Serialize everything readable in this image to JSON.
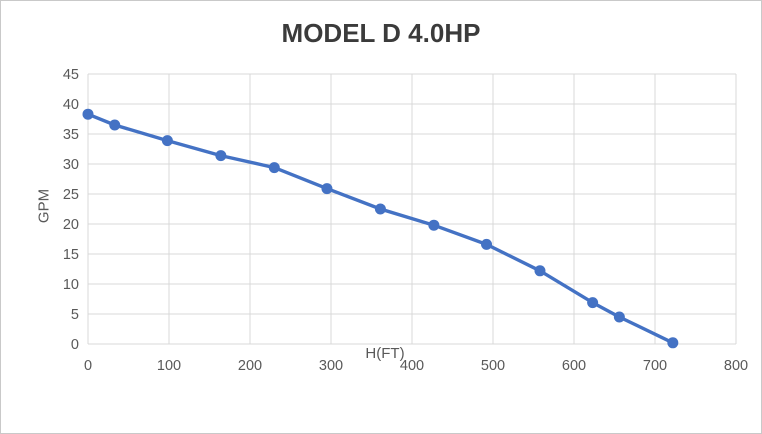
{
  "chart_data": {
    "type": "line",
    "title": "MODEL D 4.0HP",
    "xlabel": "H(FT)",
    "ylabel": "GPM",
    "x": [
      0,
      33,
      98,
      164,
      230,
      295,
      361,
      427,
      492,
      558,
      623,
      656,
      722
    ],
    "y": [
      38.3,
      36.5,
      33.9,
      31.4,
      29.4,
      25.9,
      22.5,
      19.8,
      16.6,
      12.2,
      6.9,
      4.5,
      0.2
    ],
    "xlim": [
      0,
      800
    ],
    "ylim": [
      0,
      45
    ],
    "x_ticks": [
      0,
      100,
      200,
      300,
      400,
      500,
      600,
      700,
      800
    ],
    "y_ticks": [
      0,
      5,
      10,
      15,
      20,
      25,
      30,
      35,
      40,
      45
    ],
    "grid": true,
    "legend": "none",
    "series_name": "GPM vs H(FT)",
    "colors": {
      "line": "#4472C4",
      "marker": "#4472C4",
      "grid": "#D9D9D9",
      "axis": "#D9D9D9",
      "tick_text": "#595959",
      "title_text": "#3B3B3B",
      "background": "#FFFFFF"
    }
  }
}
